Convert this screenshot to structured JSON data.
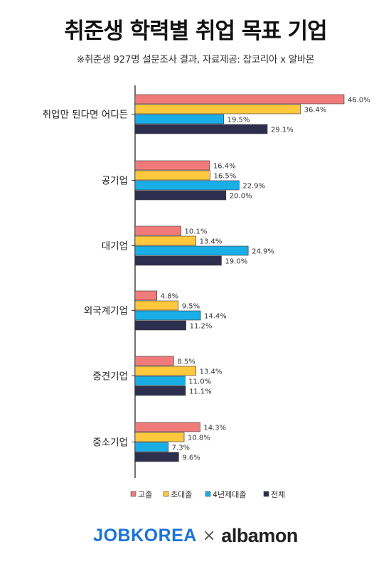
{
  "title": "취준생 학력별 취업 목표 기업",
  "subtitle": "※취준생 927명 설문조사 결과, 자료제공: 잡코리아 x 알바몬",
  "chart_data": {
    "type": "bar",
    "orientation": "horizontal",
    "categories": [
      "취업만 된다면 어디든",
      "공기업",
      "대기업",
      "외국계기업",
      "중견기업",
      "중소기업"
    ],
    "series": [
      {
        "name": "고졸",
        "color": "#f17b7b",
        "values": [
          46.0,
          16.4,
          10.1,
          4.8,
          8.5,
          14.3
        ],
        "labels": [
          "46.0%",
          "16.4%",
          "10.1%",
          "4.8%",
          "8.5%",
          "14.3%"
        ]
      },
      {
        "name": "초대졸",
        "color": "#ffc83d",
        "values": [
          36.4,
          16.5,
          13.4,
          9.5,
          13.4,
          10.8
        ],
        "labels": [
          "36.4%",
          "16.5%",
          "13.4%",
          "9.5%",
          "13.4%",
          "10.8%"
        ]
      },
      {
        "name": "4년제대졸",
        "color": "#1aaee6",
        "values": [
          19.5,
          22.9,
          24.9,
          14.4,
          11.0,
          7.3
        ],
        "labels": [
          "19.5%",
          "22.9%",
          "24.9%",
          "14.4%",
          "11.0%",
          "7.3%"
        ]
      },
      {
        "name": "전체",
        "color": "#2e2f4f",
        "values": [
          29.1,
          20.0,
          19.0,
          11.2,
          11.1,
          9.6
        ],
        "labels": [
          "29.1%",
          "20.0%",
          "19.0%",
          "11.2%",
          "11.1%",
          "9.6%"
        ]
      }
    ],
    "xlim": [
      0,
      46
    ],
    "grid": false,
    "legend_position": "bottom"
  },
  "footer": {
    "jobkorea": "JOBKOREA",
    "cross": "×",
    "albamon": "albamon"
  }
}
